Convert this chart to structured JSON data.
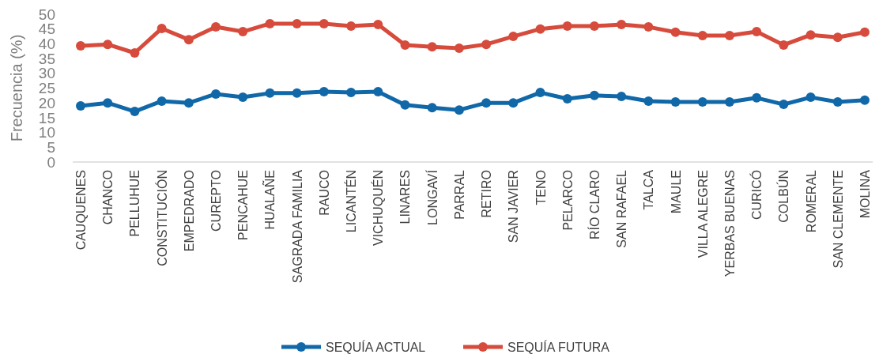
{
  "chart_data": {
    "type": "line",
    "ylabel": "Frecuencia (%)",
    "categories": [
      "CAUQUENES",
      "CHANCO",
      "PELLUHUE",
      "CONSTITUCIÓN",
      "EMPEDRADO",
      "CUREPTO",
      "PENCAHUE",
      "HUALAÑE",
      "SAGRADA FAMILIA",
      "RAUCO",
      "LICANTÉN",
      "VICHUQUÉN",
      "LINARES",
      "LONGAVÍ",
      "PARRAL",
      "RETIRO",
      "SAN JAVIER",
      "TENO",
      "PELARCO",
      "RÍO CLARO",
      "SAN RAFAEL",
      "TALCA",
      "MAULE",
      "VILLA ALEGRE",
      "YERBAS BUENAS",
      "CURICÓ",
      "COLBÚN",
      "ROMERAL",
      "SAN CLEMENTE",
      "MOLINA"
    ],
    "series": [
      {
        "name": "SEQUÍA ACTUAL",
        "color": "#1068a8",
        "values": [
          19,
          20,
          17.1,
          20.6,
          20,
          23,
          21.9,
          23.3,
          23.3,
          23.8,
          23.5,
          23.8,
          19.3,
          18.4,
          17.6,
          20,
          20,
          23.5,
          21.4,
          22.5,
          22.2,
          20.6,
          20.3,
          20.3,
          20.3,
          21.7,
          19.5,
          21.9,
          20.3,
          20.9
        ]
      },
      {
        "name": "SEQUÍA FUTURA",
        "color": "#d64b3c",
        "values": [
          39.3,
          39.8,
          36.9,
          45.2,
          41.4,
          45.7,
          44.1,
          46.8,
          46.8,
          46.8,
          46,
          46.5,
          39.6,
          39,
          38.5,
          39.8,
          42.5,
          45,
          46,
          46,
          46.5,
          45.7,
          43.9,
          42.8,
          42.8,
          44.1,
          39.6,
          43,
          42.2,
          43.9
        ]
      }
    ],
    "ylim": [
      0,
      50
    ],
    "yticks": [
      0,
      5,
      10,
      15,
      20,
      25,
      30,
      35,
      40,
      45,
      50
    ],
    "grid": false,
    "legend": "bottom",
    "marker": "circle",
    "line_style": "solid"
  }
}
